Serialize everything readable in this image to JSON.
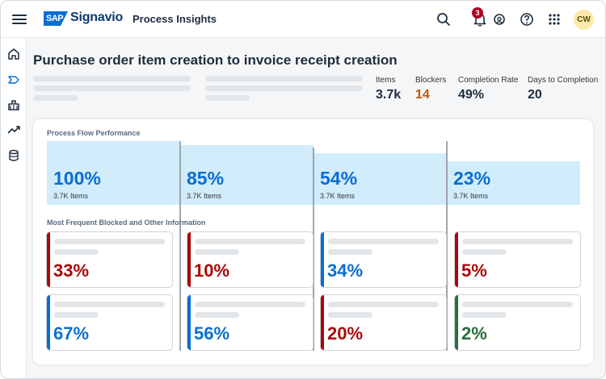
{
  "header": {
    "brand_logo_text": "SAP",
    "brand_name": "Signavio",
    "app_title": "Process Insights",
    "notification_count": "3",
    "user_initials": "CW"
  },
  "sidenav": {
    "icons": [
      "home-icon",
      "process-icon",
      "organization-icon",
      "trend-icon",
      "database-icon"
    ]
  },
  "page": {
    "title": "Purchase order item creation to invoice receipt creation"
  },
  "kpis": [
    {
      "label": "Items",
      "value": "3.7k",
      "color": "#1d2d3e"
    },
    {
      "label": "Blockers",
      "value": "14",
      "color": "#c35500"
    },
    {
      "label": "Completion Rate",
      "value": "49%",
      "color": "#1d2d3e"
    },
    {
      "label": "Days to Completion",
      "value": "20",
      "color": "#1d2d3e"
    }
  ],
  "flow": {
    "section_label": "Process Flow Performance",
    "steps": [
      {
        "percent": "100%",
        "fraction": 1.0,
        "items": "3.7K Items"
      },
      {
        "percent": "85%",
        "fraction": 0.85,
        "items": "3.7K Items"
      },
      {
        "percent": "54%",
        "fraction": 0.54,
        "items": "3.7K Items"
      },
      {
        "percent": "23%",
        "fraction": 0.23,
        "items": "3.7K Items"
      }
    ]
  },
  "blocked": {
    "section_label": "Most Frequent Blocked and Other Information",
    "row1": [
      {
        "percent": "33%",
        "status": "critical"
      },
      {
        "percent": "10%",
        "status": "critical"
      },
      {
        "percent": "34%",
        "status": "information"
      },
      {
        "percent": "5%",
        "status": "critical"
      }
    ],
    "row2": [
      {
        "percent": "67%",
        "status": "information"
      },
      {
        "percent": "56%",
        "status": "information"
      },
      {
        "percent": "20%",
        "status": "critical"
      },
      {
        "percent": "2%",
        "status": "positive"
      }
    ]
  },
  "colors": {
    "critical": "#aa0808",
    "information": "#0a6ed1",
    "positive": "#256f3a",
    "flow_fill": "#d1ecfb"
  }
}
